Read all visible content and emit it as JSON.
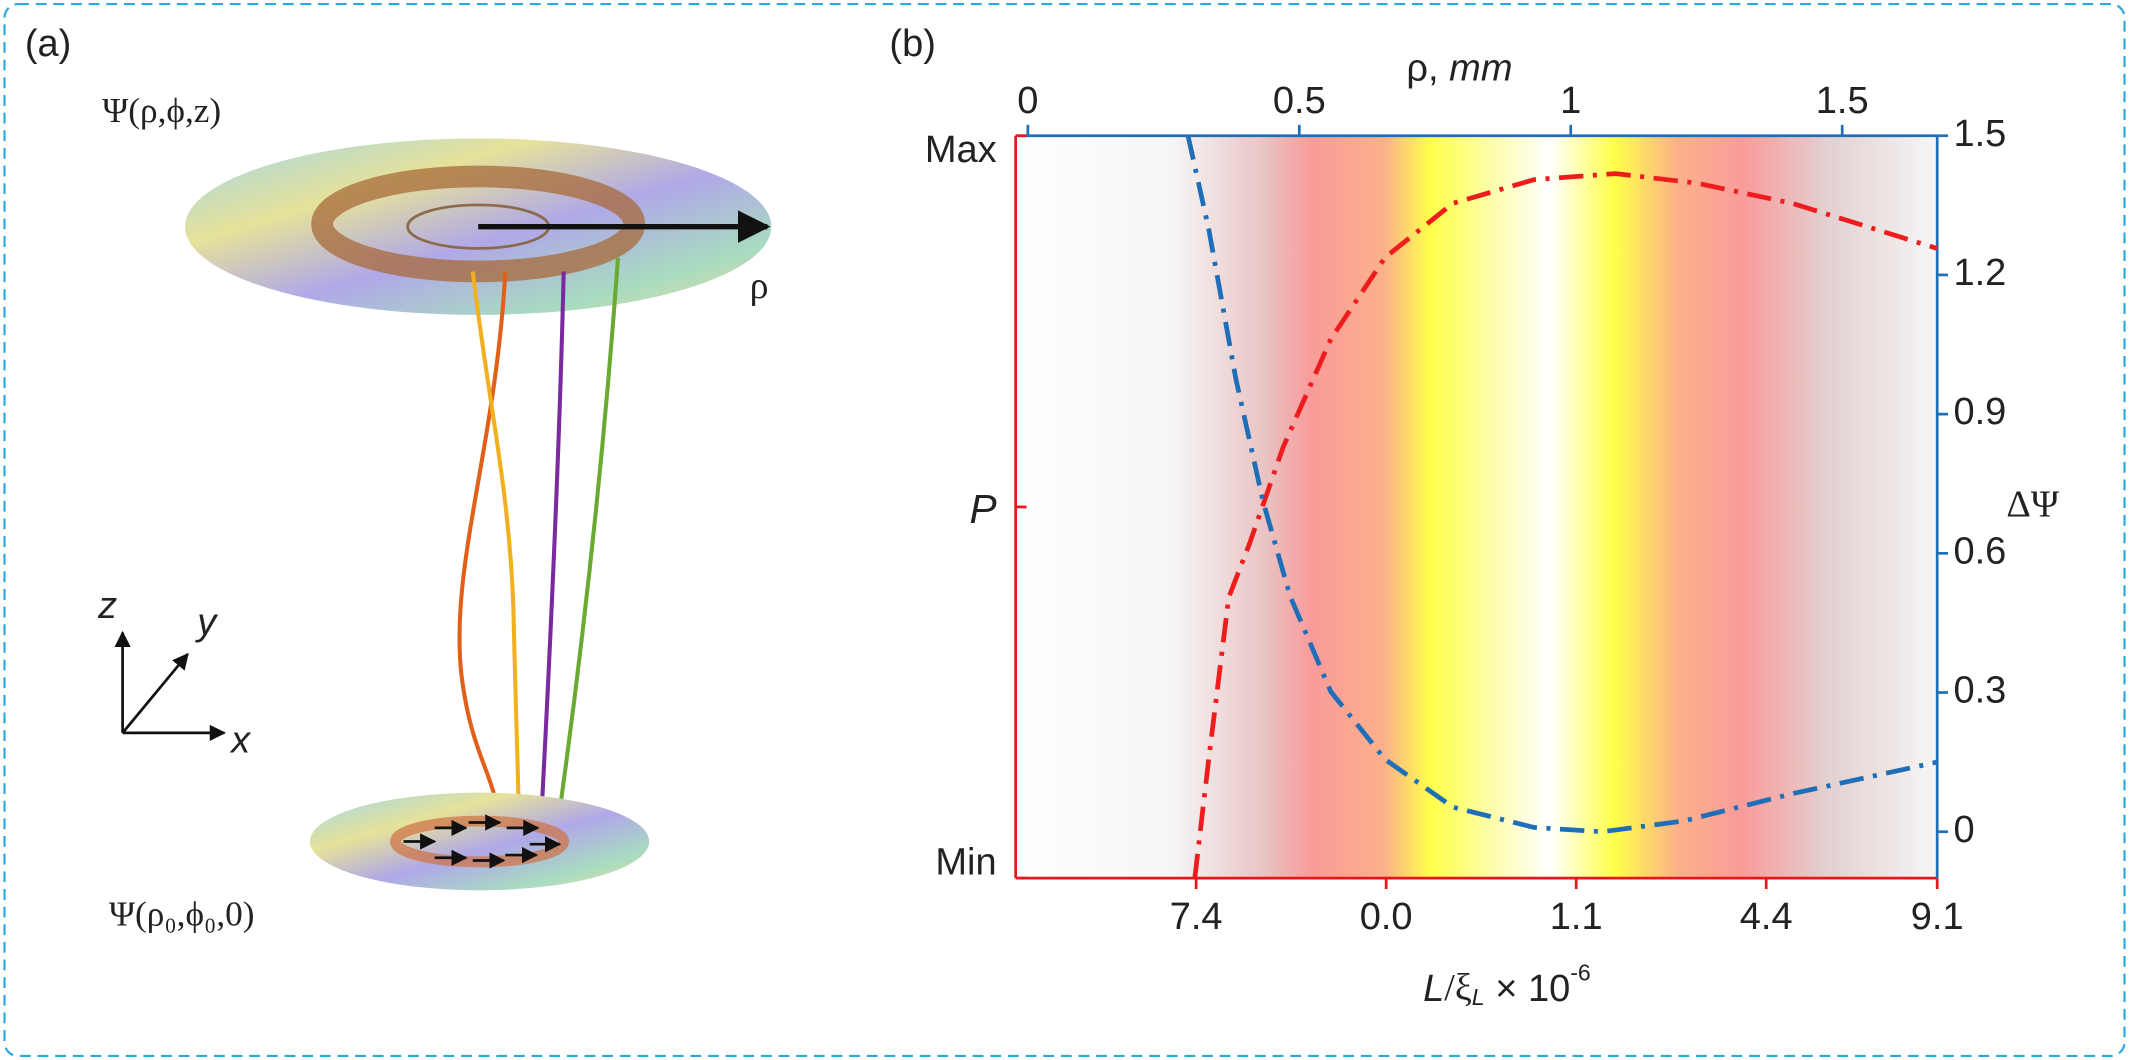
{
  "panel_a": {
    "label": "(a)",
    "top_field": "Ψ(ρ,ϕ,z)",
    "radial": "ρ",
    "axis_z": "z",
    "axis_y": "y",
    "axis_x": "x",
    "bottom_field": "Ψ(ρ₀,ϕ₀,0)"
  },
  "chart_data": {
    "type": "line",
    "label": "(b)",
    "xlabel_top": [
      "ρ, ",
      "mm"
    ],
    "xlabel_bottom": [
      "L",
      "/ξ",
      "L",
      " × 10",
      "-6"
    ],
    "ylabel": "P",
    "y2label": "ΔΨ",
    "xlim": [
      -0.0225,
      1.675
    ],
    "xticks_top": [
      0,
      0.5,
      1,
      1.5
    ],
    "xticks_bottom": [
      {
        "value": 0.31,
        "label": "7.4"
      },
      {
        "value": 0.66,
        "label": "0.0"
      },
      {
        "value": 1.01,
        "label": "1.1"
      },
      {
        "value": 1.36,
        "label": "4.4"
      },
      {
        "value": 1.675,
        "label": "9.1"
      }
    ],
    "ylim": [
      0,
      1
    ],
    "yticks": [
      {
        "value": 0,
        "label": "Min"
      },
      {
        "value": 1,
        "label": "Max"
      }
    ],
    "y2lim": [
      -0.1,
      1.5
    ],
    "y2ticks": [
      0,
      0.3,
      0.6,
      0.9,
      1.2,
      1.5
    ],
    "left_color": "#e8151b",
    "right_color": "#1f6fb8",
    "series": [
      {
        "color": "#ee1c1c",
        "axis": "y",
        "x": [
          0.3075,
          0.333,
          0.37,
          0.408,
          0.47,
          0.558,
          0.658,
          0.783,
          0.933,
          1.083,
          1.233,
          1.408,
          1.675
        ],
        "values": [
          0,
          0.159,
          0.378,
          0.45,
          0.58,
          0.726,
          0.836,
          0.909,
          0.941,
          0.949,
          0.936,
          0.909,
          0.848
        ]
      },
      {
        "color": "#1f6fb8",
        "axis": "y2",
        "x": [
          0.295,
          0.333,
          0.383,
          0.433,
          0.483,
          0.558,
          0.658,
          0.783,
          0.933,
          1.058,
          1.208,
          1.408,
          1.675
        ],
        "values": [
          1.5,
          1.3,
          0.977,
          0.713,
          0.508,
          0.302,
          0.156,
          0.053,
          0.009,
          0,
          0.023,
          0.082,
          0.15
        ]
      }
    ]
  }
}
